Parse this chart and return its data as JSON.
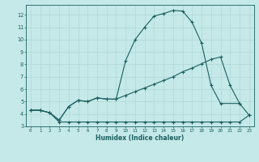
{
  "xlabel": "Humidex (Indice chaleur)",
  "bg_color": "#c5e8e8",
  "line_color": "#1a6060",
  "grid_color": "#b0d8d8",
  "xlim": [
    -0.5,
    23.5
  ],
  "ylim": [
    3,
    12.8
  ],
  "xticks": [
    0,
    1,
    2,
    3,
    4,
    5,
    6,
    7,
    8,
    9,
    10,
    11,
    12,
    13,
    14,
    15,
    16,
    17,
    18,
    19,
    20,
    21,
    22,
    23
  ],
  "yticks": [
    3,
    4,
    5,
    6,
    7,
    8,
    9,
    10,
    11,
    12
  ],
  "curve1_x": [
    0,
    1,
    2,
    3,
    4,
    5,
    6,
    7,
    8,
    9,
    10,
    11,
    12,
    13,
    14,
    15,
    16,
    17,
    18,
    19,
    20,
    22
  ],
  "curve1_y": [
    4.3,
    4.3,
    4.1,
    3.5,
    4.6,
    5.1,
    5.0,
    5.3,
    5.2,
    5.2,
    8.3,
    10.0,
    11.0,
    11.9,
    12.1,
    12.35,
    12.3,
    11.4,
    9.7,
    6.3,
    4.85,
    4.85
  ],
  "curve2_x": [
    0,
    1,
    2,
    3,
    4,
    5,
    6,
    7,
    8,
    9,
    10,
    11,
    12,
    13,
    14,
    15,
    16,
    17,
    18,
    19,
    20,
    21,
    22,
    23
  ],
  "curve2_y": [
    4.3,
    4.3,
    4.1,
    3.5,
    4.6,
    5.1,
    5.0,
    5.3,
    5.2,
    5.2,
    5.5,
    5.8,
    6.1,
    6.4,
    6.7,
    7.0,
    7.4,
    7.7,
    8.05,
    8.4,
    8.6,
    6.3,
    4.85,
    3.9
  ],
  "curve3_x": [
    0,
    1,
    2,
    3,
    4,
    5,
    6,
    7,
    8,
    9,
    10,
    11,
    12,
    13,
    14,
    15,
    16,
    17,
    18,
    19,
    20,
    21,
    22,
    23
  ],
  "curve3_y": [
    4.3,
    4.3,
    4.1,
    3.35,
    3.35,
    3.35,
    3.35,
    3.35,
    3.35,
    3.35,
    3.35,
    3.35,
    3.35,
    3.35,
    3.35,
    3.35,
    3.35,
    3.35,
    3.35,
    3.35,
    3.35,
    3.35,
    3.35,
    3.9
  ]
}
